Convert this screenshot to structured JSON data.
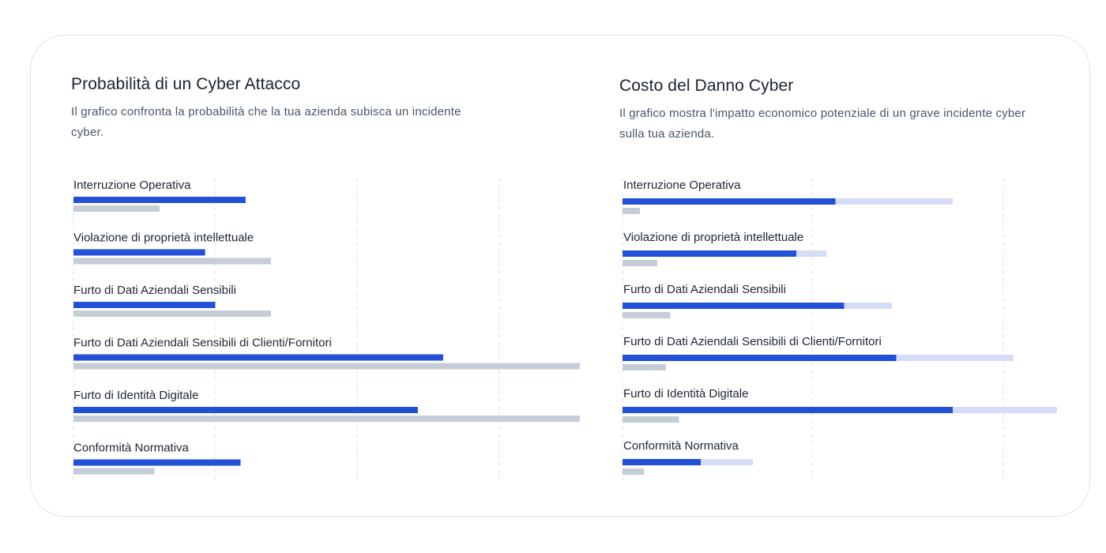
{
  "panels": [
    {
      "title": "Probabilità di un Cyber Attacco",
      "description": "Il grafico confronta la probabilità che la tua azienda subisca un incidente cyber."
    },
    {
      "title": "Costo del Danno Cyber",
      "description": "Il grafico mostra l'impatto economico potenziale di un grave incidente cyber sulla tua azienda."
    }
  ],
  "colors": {
    "primary_bar": "#2251d8",
    "range_bar": "#d4dcf6",
    "secondary_bar": "#c5cdd6",
    "gridline": "#dde2e8"
  },
  "chart_data": [
    {
      "type": "bar",
      "orientation": "horizontal",
      "title": "Probabilità di un Cyber Attacco",
      "categories": [
        "Interruzione Operativa",
        "Violazione di proprietà intellettuale",
        "Furto di Dati Aziendali Sensibili",
        "Furto di Dati Aziendali Sensibili di Clienti/Fornitori",
        "Furto di Identità Digitale",
        "Conformità Normativa"
      ],
      "xlim": [
        0,
        100
      ],
      "grid": true,
      "series": [
        {
          "color": "#2251d8",
          "values": [
            34,
            26,
            28,
            73,
            68,
            33
          ]
        },
        {
          "color": "#c5cdd6",
          "values": [
            17,
            39,
            39,
            100,
            100,
            16
          ]
        }
      ]
    },
    {
      "type": "bar",
      "orientation": "horizontal",
      "title": "Costo del Danno Cyber",
      "categories": [
        "Interruzione Operativa",
        "Violazione di proprietà intellettuale",
        "Furto di Dati Aziendali Sensibili",
        "Furto di Dati Aziendali Sensibili di Clienti/Fornitori",
        "Furto di Identità Digitale",
        "Conformità Normativa"
      ],
      "xlim": [
        0,
        100
      ],
      "grid": true,
      "series": [
        {
          "color": "#2251d8",
          "values": [
            49,
            40,
            51,
            63,
            76,
            18
          ]
        },
        {
          "color": "#d4dcf6",
          "values": [
            76,
            47,
            62,
            90,
            100,
            30
          ]
        },
        {
          "color": "#c5cdd6",
          "values": [
            4,
            8,
            11,
            10,
            13,
            5
          ]
        }
      ]
    }
  ]
}
